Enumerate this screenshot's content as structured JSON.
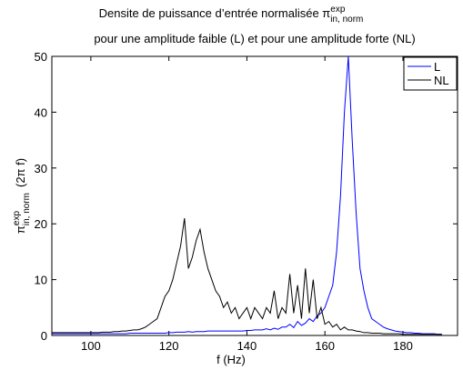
{
  "chart_data": {
    "type": "line",
    "title": {
      "text": "Densite de puissance d’entrée normalisée π",
      "sup": "exp",
      "sub": "in, norm"
    },
    "subtitle": "pour une amplitude faible (L) et pour une amplitude forte (NL)",
    "xlabel": "f (Hz)",
    "ylabel": {
      "text": "π",
      "sup": "exp",
      "sub": "in, norm",
      "suffix": "(2π f)"
    },
    "xlim": [
      90,
      194
    ],
    "ylim": [
      0,
      50
    ],
    "xticks": [
      100,
      120,
      140,
      160,
      180
    ],
    "yticks": [
      0,
      10,
      20,
      30,
      40,
      50
    ],
    "legend": "top-right",
    "x": [
      90,
      91,
      92,
      93,
      94,
      95,
      96,
      97,
      98,
      99,
      100,
      101,
      102,
      103,
      104,
      105,
      106,
      107,
      108,
      109,
      110,
      111,
      112,
      113,
      114,
      115,
      116,
      117,
      118,
      119,
      120,
      121,
      122,
      123,
      124,
      125,
      126,
      127,
      128,
      129,
      130,
      131,
      132,
      133,
      134,
      135,
      136,
      137,
      138,
      139,
      140,
      141,
      142,
      143,
      144,
      145,
      146,
      147,
      148,
      149,
      150,
      151,
      152,
      153,
      154,
      155,
      156,
      157,
      158,
      159,
      160,
      161,
      162,
      163,
      164,
      165,
      166,
      167,
      168,
      169,
      170,
      171,
      172,
      173,
      174,
      175,
      176,
      177,
      178,
      179,
      180,
      181,
      182,
      183,
      184,
      185,
      186,
      187,
      188,
      189,
      190
    ],
    "series": [
      {
        "name": "L",
        "color": "#0000ff",
        "values": [
          0.3,
          0.3,
          0.3,
          0.3,
          0.3,
          0.3,
          0.3,
          0.3,
          0.3,
          0.3,
          0.3,
          0.3,
          0.3,
          0.3,
          0.3,
          0.3,
          0.3,
          0.3,
          0.3,
          0.3,
          0.4,
          0.4,
          0.4,
          0.4,
          0.4,
          0.4,
          0.4,
          0.4,
          0.4,
          0.4,
          0.5,
          0.5,
          0.6,
          0.6,
          0.6,
          0.7,
          0.6,
          0.7,
          0.7,
          0.7,
          0.8,
          0.8,
          0.8,
          0.8,
          0.8,
          0.8,
          0.8,
          0.8,
          0.8,
          0.8,
          0.9,
          0.9,
          1,
          1,
          1,
          1.2,
          1,
          1.3,
          1.1,
          1.5,
          1.5,
          2,
          1.4,
          2.5,
          1.8,
          2.2,
          3,
          2.5,
          3.5,
          4,
          5,
          7,
          9,
          15,
          25,
          40,
          50,
          35,
          22,
          12,
          8,
          5,
          3,
          2.5,
          2,
          1.5,
          1.2,
          1,
          0.8,
          0.7,
          0.6,
          0.5,
          0.5,
          0.4,
          0.4,
          0.3,
          0.3,
          0.3,
          0.3,
          0.2,
          0.2
        ]
      },
      {
        "name": "NL",
        "color": "#000000",
        "values": [
          0.5,
          0.5,
          0.5,
          0.5,
          0.5,
          0.5,
          0.5,
          0.5,
          0.5,
          0.5,
          0.5,
          0.5,
          0.5,
          0.6,
          0.6,
          0.6,
          0.7,
          0.7,
          0.8,
          0.8,
          0.9,
          1,
          1,
          1.2,
          1.5,
          2,
          2.5,
          3,
          5,
          7,
          8,
          10,
          13,
          16,
          21,
          12,
          14,
          17,
          19,
          15,
          12,
          10,
          8,
          7,
          5,
          6,
          4,
          5,
          3,
          4,
          5,
          3,
          5,
          4,
          3,
          5,
          4,
          8,
          3,
          5,
          4,
          11,
          4,
          9,
          3,
          12,
          4,
          10,
          3,
          5,
          2,
          2.5,
          1.5,
          2,
          1,
          1.5,
          1,
          1,
          0.8,
          0.7,
          0.5,
          0.5,
          0.4,
          0.4,
          0.4,
          0.3,
          0.3,
          0.3,
          0.3,
          0.3,
          0.2,
          0.2,
          0.2,
          0.2,
          0.2,
          0.2,
          0.2,
          0.2,
          0.2,
          0.2,
          0.2
        ]
      }
    ]
  }
}
